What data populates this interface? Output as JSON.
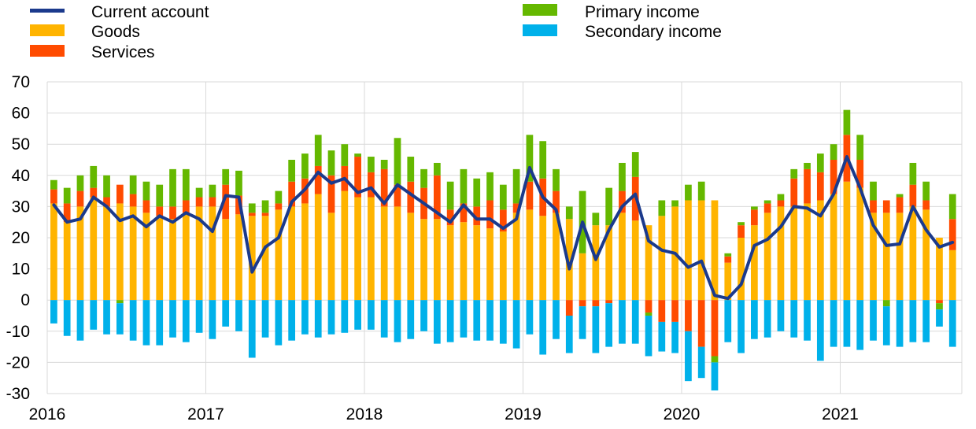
{
  "chart_data": {
    "type": "bar",
    "stacked": true,
    "title": "",
    "xlabel": "",
    "ylabel": "",
    "ylim": [
      -30,
      70
    ],
    "yticks": [
      70,
      60,
      50,
      40,
      30,
      20,
      10,
      0,
      -10,
      -20,
      -30
    ],
    "year_labels": [
      "2016",
      "2017",
      "2018",
      "2019",
      "2020",
      "2021"
    ],
    "grid": true,
    "legend_placement": "top",
    "colors": {
      "current_account": "#1B3A8C",
      "goods": "#FFB400",
      "services": "#FF4B00",
      "primary_income": "#65B800",
      "secondary_income": "#00B1EA",
      "grid": "#D9D9D9"
    },
    "series": [
      {
        "name": "Current account",
        "key": "current_account",
        "kind": "line",
        "values": [
          30.5,
          25,
          26,
          33,
          30,
          25.5,
          27,
          23.5,
          27,
          25,
          28,
          26,
          22,
          33.5,
          33,
          9,
          17,
          20,
          31.5,
          35.5,
          41,
          37.5,
          39,
          34.5,
          36,
          31,
          37,
          34,
          31,
          28,
          25,
          30.5,
          26,
          26,
          23,
          26,
          42.5,
          33,
          29,
          10,
          25,
          13,
          22.5,
          30,
          34,
          19,
          16,
          15,
          10.5,
          12.5,
          1.5,
          0.5,
          5,
          17.5,
          19.5,
          23.5,
          30,
          29.5,
          27,
          34,
          46,
          36,
          24,
          17.5,
          18,
          30,
          22.5,
          17,
          18.5
        ]
      },
      {
        "name": "Goods",
        "key": "goods",
        "kind": "bar",
        "values": [
          31,
          25,
          30,
          33,
          30,
          31,
          30,
          28,
          27,
          26,
          28,
          30,
          30,
          26,
          27.5,
          27,
          27,
          29,
          30,
          31,
          34,
          28,
          35,
          33,
          33,
          30,
          30,
          28,
          26,
          26,
          24,
          25,
          24,
          23,
          22,
          28,
          29,
          27,
          28,
          26,
          15,
          24,
          24,
          28,
          25.5,
          24,
          27,
          30,
          32,
          32,
          32,
          12,
          20,
          24,
          28,
          30,
          30,
          31,
          32,
          34,
          38,
          36,
          28,
          28,
          28,
          30,
          29,
          20,
          16
        ]
      },
      {
        "name": "Services",
        "key": "services",
        "kind": "bar",
        "values": [
          4.5,
          6,
          5,
          3,
          3,
          6,
          4,
          4,
          3,
          4,
          4,
          3,
          3,
          11,
          6,
          1,
          1,
          2,
          8,
          8,
          9,
          12,
          8,
          13,
          8,
          12,
          7,
          10,
          10,
          14,
          5,
          6,
          6,
          9,
          7,
          3,
          9,
          12,
          7,
          -5,
          -2,
          -2,
          -1,
          7,
          14,
          -4,
          -7,
          -7,
          -10,
          -15,
          -18,
          2,
          4,
          5,
          3,
          2,
          9,
          11,
          9,
          11,
          15,
          9,
          4,
          4,
          5,
          7,
          3,
          -1,
          10
        ]
      },
      {
        "name": "Primary income",
        "key": "primary_income",
        "kind": "bar",
        "values": [
          3,
          5,
          5,
          7,
          7,
          -1,
          6,
          6,
          7,
          12,
          10,
          3,
          4,
          5,
          8,
          3,
          4,
          4,
          7,
          8,
          10,
          8,
          7,
          1,
          5,
          3,
          15,
          8,
          6,
          4,
          9,
          11,
          9,
          9,
          8,
          11,
          15,
          12,
          7,
          4,
          20,
          4,
          12,
          9,
          8,
          -1,
          5,
          2,
          5,
          6,
          -2,
          1,
          1,
          1,
          1,
          2,
          3,
          2,
          6,
          5,
          8,
          8,
          6,
          -2,
          1,
          7,
          6,
          -2,
          8
        ]
      },
      {
        "name": "Secondary income",
        "key": "secondary_income",
        "kind": "bar",
        "values": [
          -7.5,
          -11.5,
          -13,
          -9.5,
          -11,
          -10,
          -13,
          -14.5,
          -14.5,
          -12,
          -13.5,
          -10.5,
          -12.5,
          -8.5,
          -10,
          -18.5,
          -12,
          -14.5,
          -13,
          -11,
          -12,
          -11,
          -10.5,
          -9.5,
          -9.5,
          -12,
          -13.5,
          -12.5,
          -10,
          -14,
          -13.5,
          -12,
          -13,
          -13,
          -14,
          -15.5,
          -11,
          -17.5,
          -12.5,
          -12,
          -10.5,
          -15,
          -14,
          -14,
          -14,
          -13,
          -9.5,
          -10,
          -16,
          -10,
          -9,
          -13.5,
          -17,
          -12.5,
          -12,
          -10,
          -12,
          -13,
          -19.5,
          -15,
          -15,
          -16,
          -13,
          -12.5,
          -15,
          -13.5,
          -13.5,
          -5.5,
          -15
        ]
      }
    ]
  }
}
